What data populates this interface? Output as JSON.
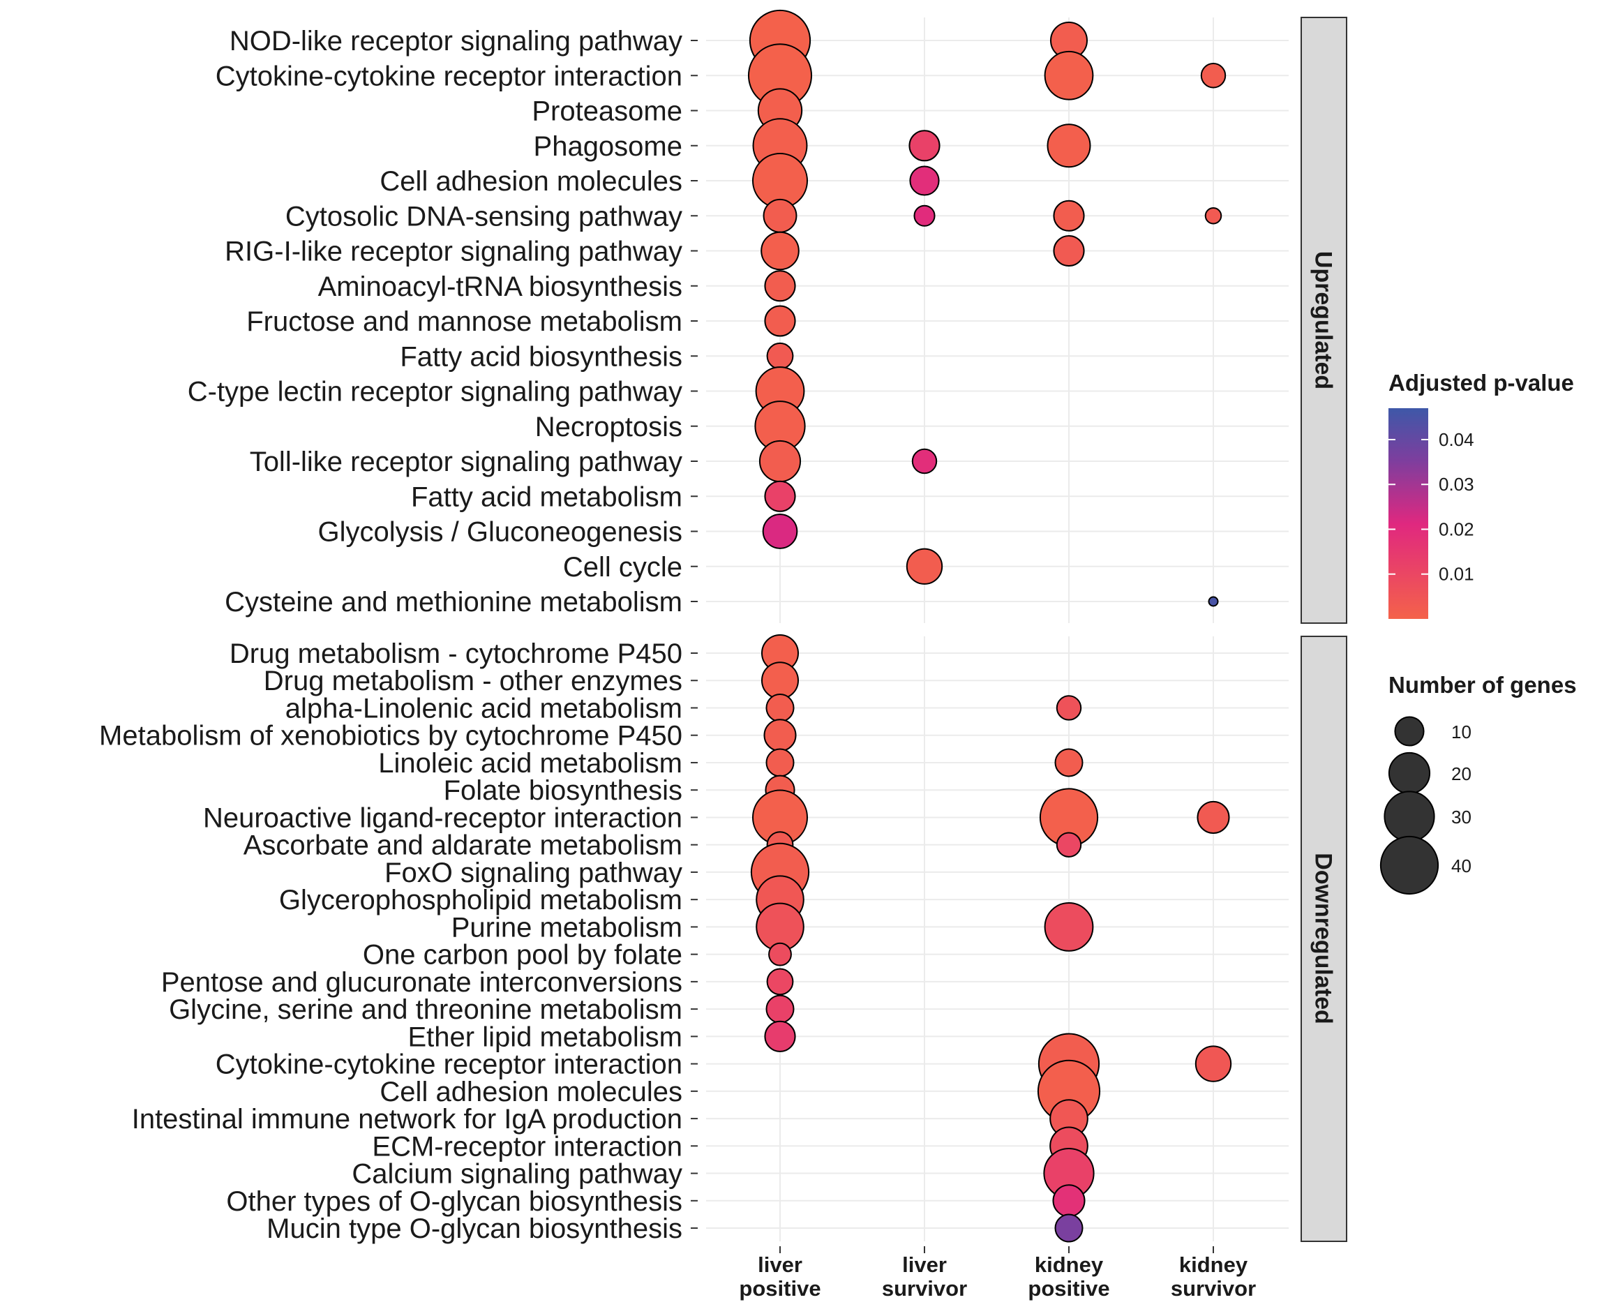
{
  "chart_data": {
    "type": "scatter",
    "subtype": "dot-plot",
    "columns": [
      "liver\npositive",
      "liver\nsurvivor",
      "kidney\npositive",
      "kidney\nsurvivor"
    ],
    "panels": [
      {
        "name": "Upregulated",
        "pathways": [
          "NOD-like receptor signaling pathway",
          "Cytokine-cytokine receptor interaction",
          "Proteasome",
          "Phagosome",
          "Cell adhesion molecules",
          "Cytosolic DNA-sensing pathway",
          "RIG-I-like receptor signaling pathway",
          "Aminoacyl-tRNA biosynthesis",
          "Fructose and mannose metabolism",
          "Fatty acid biosynthesis",
          "C-type lectin receptor signaling pathway",
          "Necroptosis",
          "Toll-like receptor signaling pathway",
          "Fatty acid metabolism",
          "Glycolysis / Gluconeogenesis",
          "Cell cycle",
          "Cysteine and methionine metabolism"
        ],
        "points": [
          {
            "row": 0,
            "col": 0,
            "genes": 44,
            "padj": 0.0005
          },
          {
            "row": 0,
            "col": 2,
            "genes": 16,
            "padj": 0.002
          },
          {
            "row": 1,
            "col": 0,
            "genes": 48,
            "padj": 0.0005
          },
          {
            "row": 1,
            "col": 2,
            "genes": 28,
            "padj": 0.0008
          },
          {
            "row": 1,
            "col": 3,
            "genes": 7,
            "padj": 0.002
          },
          {
            "row": 2,
            "col": 0,
            "genes": 23,
            "padj": 0.001
          },
          {
            "row": 3,
            "col": 0,
            "genes": 35,
            "padj": 0.001
          },
          {
            "row": 3,
            "col": 1,
            "genes": 11,
            "padj": 0.012
          },
          {
            "row": 3,
            "col": 2,
            "genes": 22,
            "padj": 0.001
          },
          {
            "row": 4,
            "col": 0,
            "genes": 36,
            "padj": 0.0008
          },
          {
            "row": 4,
            "col": 1,
            "genes": 10,
            "padj": 0.019
          },
          {
            "row": 5,
            "col": 0,
            "genes": 13,
            "padj": 0.002
          },
          {
            "row": 5,
            "col": 1,
            "genes": 5,
            "padj": 0.02
          },
          {
            "row": 5,
            "col": 2,
            "genes": 11,
            "padj": 0.002
          },
          {
            "row": 5,
            "col": 3,
            "genes": 3,
            "padj": 0.003
          },
          {
            "row": 6,
            "col": 0,
            "genes": 17,
            "padj": 0.001
          },
          {
            "row": 6,
            "col": 2,
            "genes": 11,
            "padj": 0.003
          },
          {
            "row": 7,
            "col": 0,
            "genes": 11,
            "padj": 0.002
          },
          {
            "row": 8,
            "col": 0,
            "genes": 11,
            "padj": 0.002
          },
          {
            "row": 9,
            "col": 0,
            "genes": 8,
            "padj": 0.003
          },
          {
            "row": 10,
            "col": 0,
            "genes": 28,
            "padj": 0.001
          },
          {
            "row": 11,
            "col": 0,
            "genes": 30,
            "padj": 0.001
          },
          {
            "row": 12,
            "col": 0,
            "genes": 20,
            "padj": 0.002
          },
          {
            "row": 12,
            "col": 1,
            "genes": 7,
            "padj": 0.019
          },
          {
            "row": 13,
            "col": 0,
            "genes": 11,
            "padj": 0.012
          },
          {
            "row": 14,
            "col": 0,
            "genes": 14,
            "padj": 0.022
          },
          {
            "row": 15,
            "col": 1,
            "genes": 15,
            "padj": 0.002
          },
          {
            "row": 16,
            "col": 3,
            "genes": 1,
            "padj": 0.045
          }
        ]
      },
      {
        "name": "Downregulated",
        "pathways": [
          "Drug metabolism - cytochrome P450",
          "Drug metabolism - other enzymes",
          "alpha-Linolenic acid metabolism",
          "Metabolism of xenobiotics by cytochrome P450",
          "Linoleic acid metabolism",
          "Folate biosynthesis",
          "Neuroactive ligand-receptor interaction",
          "Ascorbate and aldarate metabolism",
          "FoxO signaling pathway",
          "Glycerophospholipid metabolism",
          "Purine metabolism",
          "One carbon pool by folate",
          "Pentose and glucuronate interconversions",
          "Glycine, serine and threonine metabolism",
          "Ether lipid metabolism",
          "Cytokine-cytokine receptor interaction",
          "Cell adhesion molecules",
          "Intestinal immune network for IgA production",
          "ECM-receptor interaction",
          "Calcium signaling pathway",
          "Other types of O-glycan biosynthesis",
          "Mucin type O-glycan biosynthesis"
        ],
        "points": [
          {
            "row": 0,
            "col": 0,
            "genes": 16,
            "padj": 0.001
          },
          {
            "row": 1,
            "col": 0,
            "genes": 16,
            "padj": 0.001
          },
          {
            "row": 2,
            "col": 0,
            "genes": 9,
            "padj": 0.002
          },
          {
            "row": 2,
            "col": 2,
            "genes": 7,
            "padj": 0.006
          },
          {
            "row": 3,
            "col": 0,
            "genes": 12,
            "padj": 0.002
          },
          {
            "row": 4,
            "col": 0,
            "genes": 9,
            "padj": 0.002
          },
          {
            "row": 4,
            "col": 2,
            "genes": 9,
            "padj": 0.002
          },
          {
            "row": 5,
            "col": 0,
            "genes": 10,
            "padj": 0.002
          },
          {
            "row": 6,
            "col": 0,
            "genes": 36,
            "padj": 0.0008
          },
          {
            "row": 6,
            "col": 2,
            "genes": 40,
            "padj": 0.0008
          },
          {
            "row": 6,
            "col": 3,
            "genes": 12,
            "padj": 0.003
          },
          {
            "row": 7,
            "col": 0,
            "genes": 8,
            "padj": 0.003
          },
          {
            "row": 7,
            "col": 2,
            "genes": 7,
            "padj": 0.01
          },
          {
            "row": 8,
            "col": 0,
            "genes": 40,
            "padj": 0.002
          },
          {
            "row": 9,
            "col": 0,
            "genes": 27,
            "padj": 0.004
          },
          {
            "row": 10,
            "col": 0,
            "genes": 27,
            "padj": 0.006
          },
          {
            "row": 10,
            "col": 2,
            "genes": 28,
            "padj": 0.008
          },
          {
            "row": 11,
            "col": 0,
            "genes": 6,
            "padj": 0.008
          },
          {
            "row": 12,
            "col": 0,
            "genes": 8,
            "padj": 0.01
          },
          {
            "row": 13,
            "col": 0,
            "genes": 9,
            "padj": 0.012
          },
          {
            "row": 14,
            "col": 0,
            "genes": 11,
            "padj": 0.014
          },
          {
            "row": 15,
            "col": 2,
            "genes": 44,
            "padj": 0.002
          },
          {
            "row": 15,
            "col": 3,
            "genes": 15,
            "padj": 0.004
          },
          {
            "row": 16,
            "col": 2,
            "genes": 46,
            "padj": 0.001
          },
          {
            "row": 17,
            "col": 2,
            "genes": 17,
            "padj": 0.004
          },
          {
            "row": 18,
            "col": 2,
            "genes": 17,
            "padj": 0.008
          },
          {
            "row": 19,
            "col": 2,
            "genes": 30,
            "padj": 0.012
          },
          {
            "row": 20,
            "col": 2,
            "genes": 12,
            "padj": 0.018
          },
          {
            "row": 21,
            "col": 2,
            "genes": 9,
            "padj": 0.036
          }
        ]
      }
    ],
    "color_legend": {
      "title": "Adjusted p-value",
      "range": [
        0.0,
        0.047
      ],
      "ticks": [
        {
          "value": 0.04,
          "label": "0.04"
        },
        {
          "value": 0.03,
          "label": "0.03"
        },
        {
          "value": 0.02,
          "label": "0.02"
        },
        {
          "value": 0.01,
          "label": "0.01"
        }
      ],
      "colors": [
        "#f4624a",
        "#e0287f",
        "#7e3e9e",
        "#3e58a8"
      ]
    },
    "size_legend": {
      "title": "Number of genes",
      "entries": [
        {
          "value": 10,
          "label": "10"
        },
        {
          "value": 20,
          "label": "20"
        },
        {
          "value": 30,
          "label": "30"
        },
        {
          "value": 40,
          "label": "40"
        }
      ]
    },
    "panel_strip_fill": "#d9d9d9"
  }
}
